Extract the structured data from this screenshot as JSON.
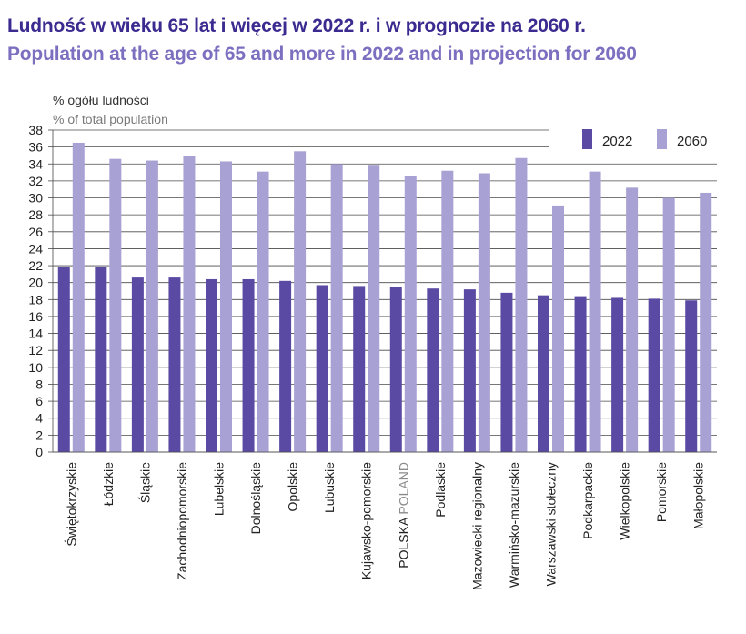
{
  "title_pl": "Ludność w wieku 65 lat i więcej w 2022 r. i w prognozie na 2060 r.",
  "title_en": "Population at the age of 65 and more in 2022 and in projection for 2060",
  "colors": {
    "title_pl": "#3b2a8f",
    "title_en": "#7d6fc0",
    "series_2022": "#5b4aa3",
    "series_2060": "#a8a1d4"
  },
  "chart_data": {
    "type": "bar",
    "title": "Ludność w wieku 65 lat i więcej w 2022 r. i w prognozie na 2060 r.",
    "ylabel_pl": "% ogółu ludności",
    "ylabel_en": "% of total population",
    "ylim": [
      0,
      38
    ],
    "ytick_step": 2,
    "legend_position": "top-right",
    "categories": [
      {
        "pl": "Świętokrzyskie",
        "en": ""
      },
      {
        "pl": "Łódzkie",
        "en": ""
      },
      {
        "pl": "Śląskie",
        "en": ""
      },
      {
        "pl": "Zachodniopomorskie",
        "en": ""
      },
      {
        "pl": "Lubelskie",
        "en": ""
      },
      {
        "pl": "Dolnośląskie",
        "en": ""
      },
      {
        "pl": "Opolskie",
        "en": ""
      },
      {
        "pl": "Lubuskie",
        "en": ""
      },
      {
        "pl": "Kujawsko-pomorskie",
        "en": ""
      },
      {
        "pl": "POLSKA",
        "en": "POLAND"
      },
      {
        "pl": "Podlaskie",
        "en": ""
      },
      {
        "pl": "Mazowiecki regionalny",
        "en": ""
      },
      {
        "pl": "Warmińsko-mazurskie",
        "en": ""
      },
      {
        "pl": "Warszawski stołeczny",
        "en": ""
      },
      {
        "pl": "Podkarpackie",
        "en": ""
      },
      {
        "pl": "Wielkopolskie",
        "en": ""
      },
      {
        "pl": "Pomorskie",
        "en": ""
      },
      {
        "pl": "Małopolskie",
        "en": ""
      }
    ],
    "series": [
      {
        "name": "2022",
        "values": [
          21.8,
          21.8,
          20.6,
          20.6,
          20.4,
          20.4,
          20.2,
          19.7,
          19.6,
          19.5,
          19.3,
          19.2,
          18.8,
          18.5,
          18.4,
          18.2,
          18.1,
          17.9
        ]
      },
      {
        "name": "2060",
        "values": [
          36.5,
          34.6,
          34.4,
          34.9,
          34.3,
          33.1,
          35.5,
          34.0,
          33.9,
          32.6,
          33.2,
          32.9,
          34.7,
          29.1,
          33.1,
          31.2,
          30.0,
          30.6
        ]
      }
    ]
  }
}
